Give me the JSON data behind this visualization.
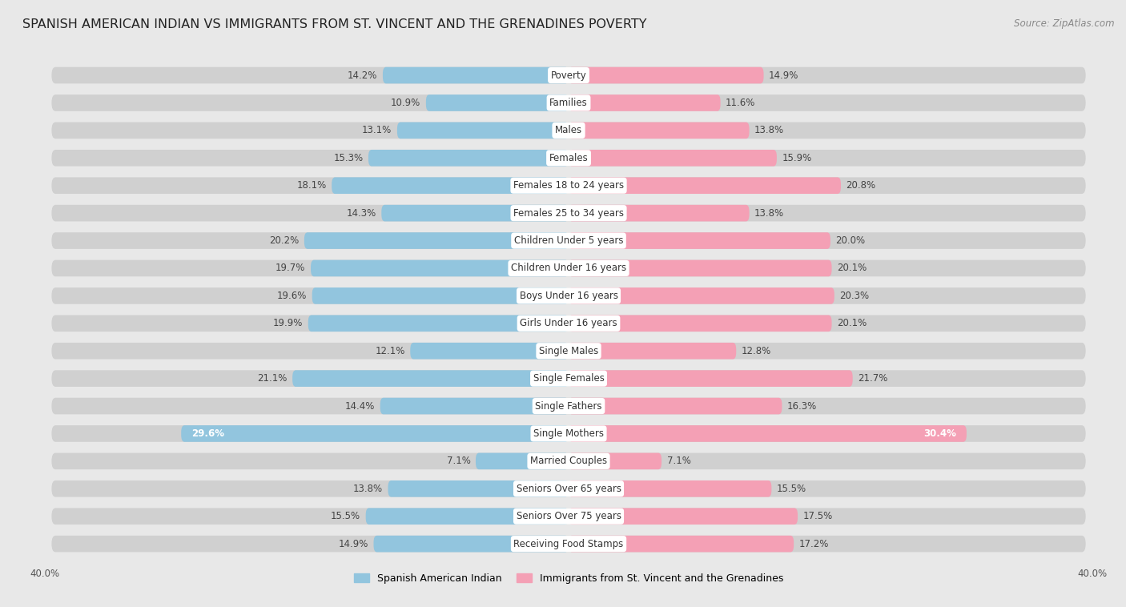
{
  "title": "SPANISH AMERICAN INDIAN VS IMMIGRANTS FROM ST. VINCENT AND THE GRENADINES POVERTY",
  "source": "Source: ZipAtlas.com",
  "categories": [
    "Poverty",
    "Families",
    "Males",
    "Females",
    "Females 18 to 24 years",
    "Females 25 to 34 years",
    "Children Under 5 years",
    "Children Under 16 years",
    "Boys Under 16 years",
    "Girls Under 16 years",
    "Single Males",
    "Single Females",
    "Single Fathers",
    "Single Mothers",
    "Married Couples",
    "Seniors Over 65 years",
    "Seniors Over 75 years",
    "Receiving Food Stamps"
  ],
  "left_values": [
    14.2,
    10.9,
    13.1,
    15.3,
    18.1,
    14.3,
    20.2,
    19.7,
    19.6,
    19.9,
    12.1,
    21.1,
    14.4,
    29.6,
    7.1,
    13.8,
    15.5,
    14.9
  ],
  "right_values": [
    14.9,
    11.6,
    13.8,
    15.9,
    20.8,
    13.8,
    20.0,
    20.1,
    20.3,
    20.1,
    12.8,
    21.7,
    16.3,
    30.4,
    7.1,
    15.5,
    17.5,
    17.2
  ],
  "left_color": "#92c5de",
  "right_color": "#f4a0b5",
  "left_label": "Spanish American Indian",
  "right_label": "Immigrants from St. Vincent and the Grenadines",
  "axis_max": 40.0,
  "bg_color": "#e8e8e8",
  "bar_bg_color": "#ffffff",
  "title_fontsize": 11.5,
  "label_fontsize": 8.5,
  "value_fontsize": 8.5,
  "source_fontsize": 8.5,
  "large_bar_threshold": 26.0
}
